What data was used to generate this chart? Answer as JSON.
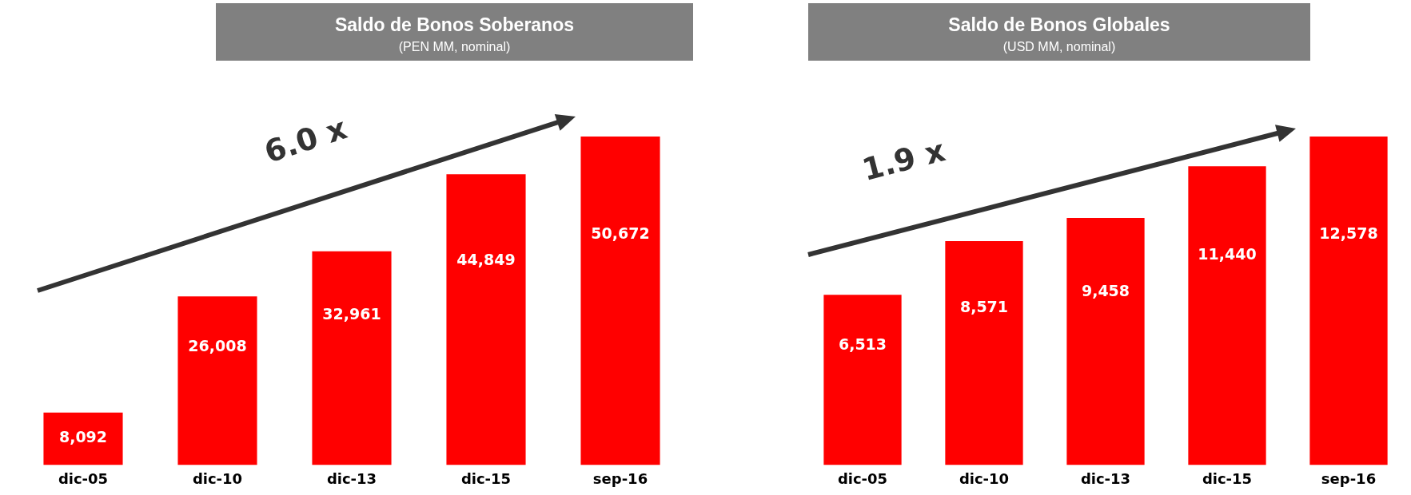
{
  "chart_data": [
    {
      "type": "bar",
      "title": "Saldo de Bonos Soberanos",
      "subtitle": "(PEN MM, nominal)",
      "categories": [
        "dic-05",
        "dic-10",
        "dic-13",
        "dic-15",
        "sep-16"
      ],
      "values": [
        8092,
        26008,
        32961,
        44849,
        50672
      ],
      "value_labels": [
        "8,092",
        "26,008",
        "32,961",
        "44,849",
        "50,672"
      ],
      "color": "#ff0000",
      "tick_labels": "x",
      "annotations": [
        "6.0 x"
      ]
    },
    {
      "type": "bar",
      "title": "Saldo de Bonos Globales",
      "subtitle": "(USD MM, nominal)",
      "categories": [
        "dic-05",
        "dic-10",
        "dic-13",
        "dic-15",
        "sep-16"
      ],
      "values": [
        6513,
        8571,
        9458,
        11440,
        12578
      ],
      "value_labels": [
        "6,513",
        "8,571",
        "9,458",
        "11,440",
        "12,578"
      ],
      "color": "#ff0000",
      "tick_labels": "x",
      "annotations": [
        "1.9 x"
      ]
    }
  ]
}
